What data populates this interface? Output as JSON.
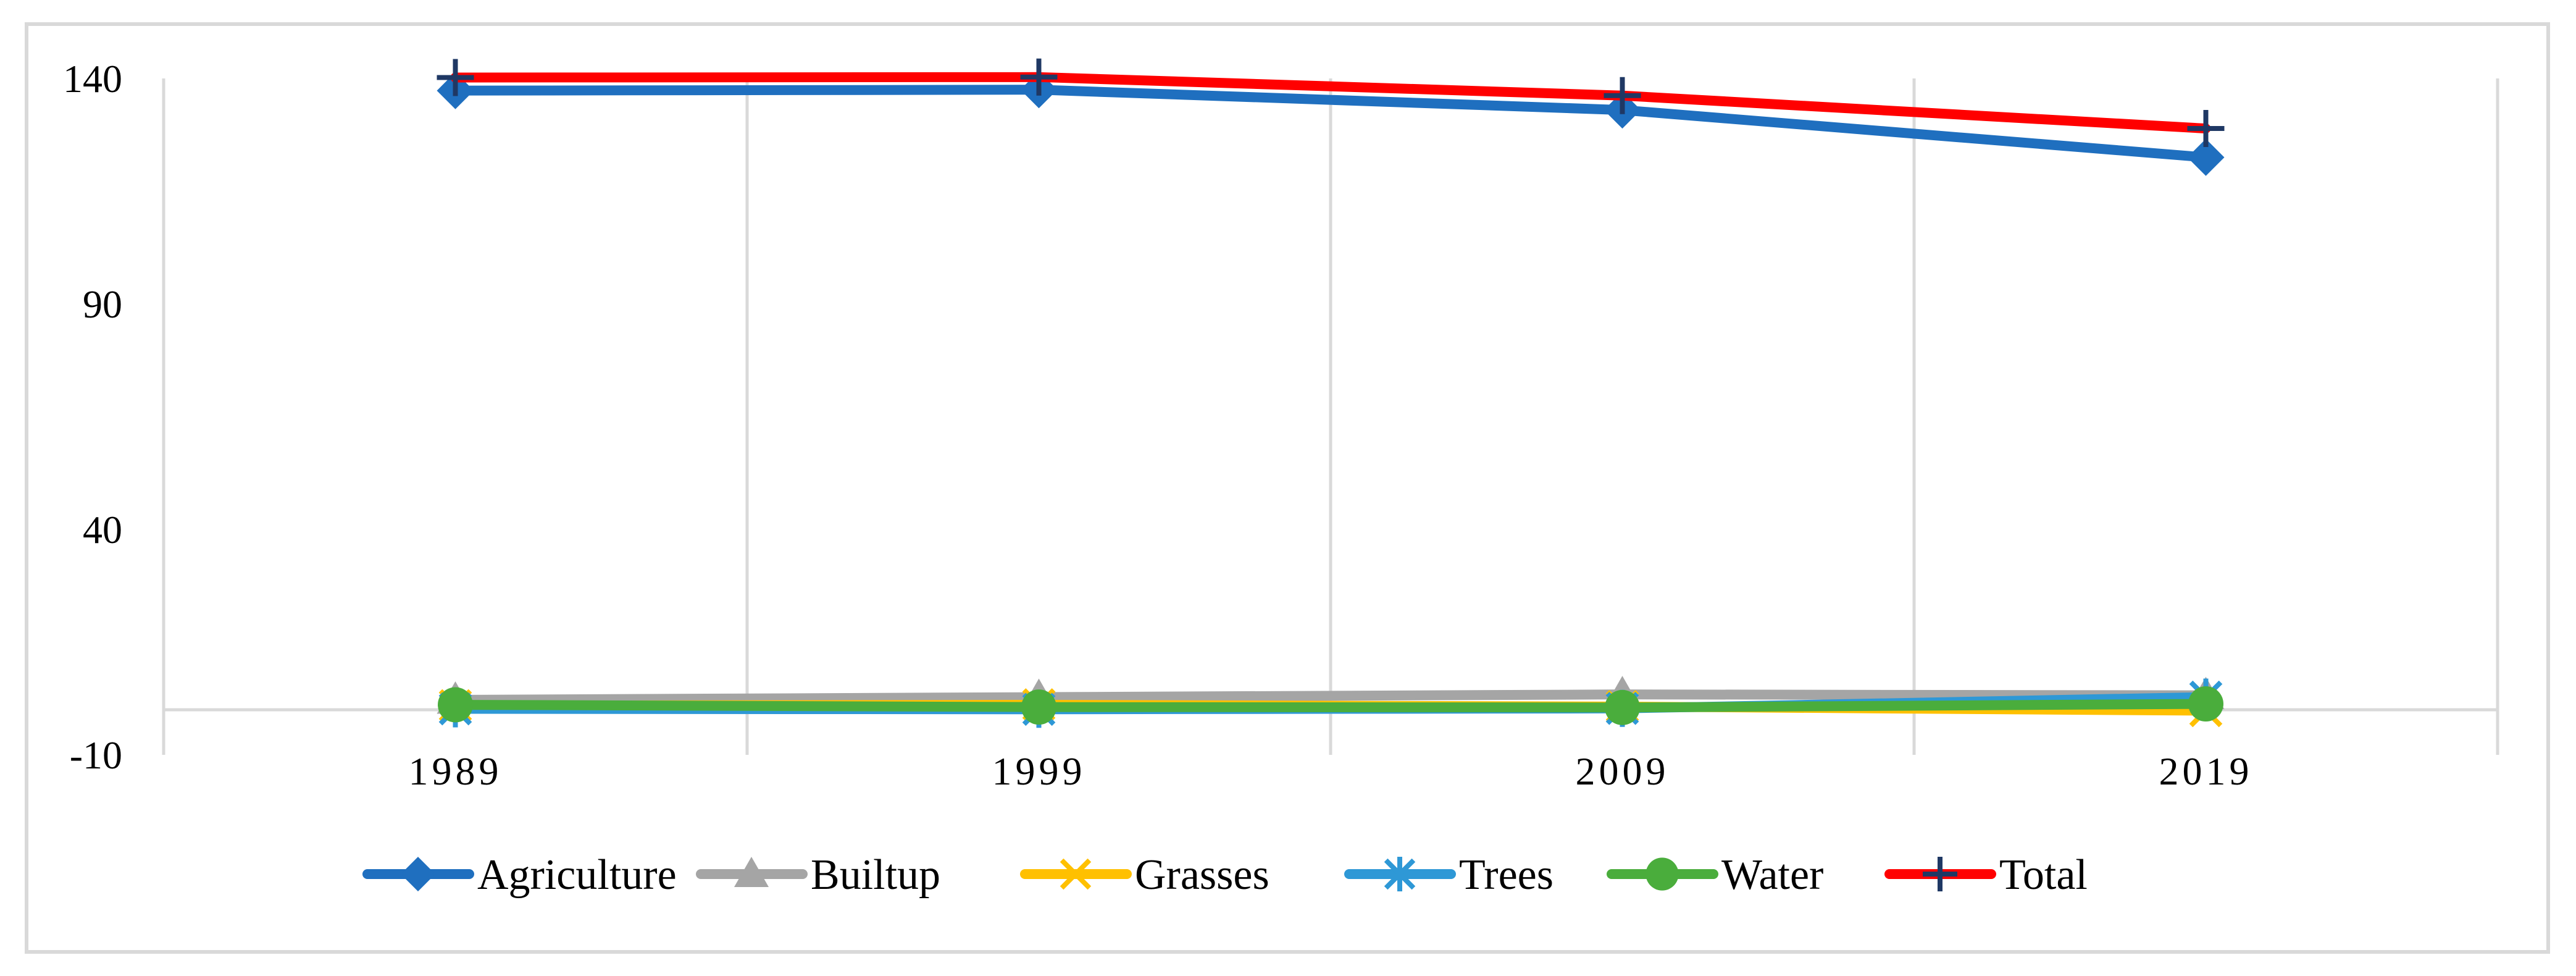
{
  "chart_data": {
    "type": "line",
    "x": [
      "1989",
      "1999",
      "2009",
      "2019"
    ],
    "ylim": [
      -10,
      140
    ],
    "yticks": [
      -10,
      40,
      90,
      140
    ],
    "grid": "vertical",
    "legend_position": "bottom",
    "title": "",
    "xlabel": "",
    "ylabel": "",
    "series": [
      {
        "name": "Agriculture",
        "values": [
          137.3,
          137.5,
          133.0,
          122.5
        ],
        "color": "#1f6fbf",
        "marker": "diamond"
      },
      {
        "name": "Builtup",
        "values": [
          2.2,
          2.8,
          3.4,
          3.2
        ],
        "color": "#a5a5a5",
        "marker": "triangle"
      },
      {
        "name": "Grasses",
        "values": [
          0.9,
          1.1,
          0.7,
          -0.2
        ],
        "color": "#ffc000",
        "marker": "x"
      },
      {
        "name": "Trees",
        "values": [
          0.2,
          0.1,
          0.3,
          2.8
        ],
        "color": "#2e98d6",
        "marker": "star"
      },
      {
        "name": "Water",
        "values": [
          1.1,
          0.6,
          0.5,
          1.3
        ],
        "color": "#4aad3c",
        "marker": "circle"
      },
      {
        "name": "Total",
        "values": [
          140.2,
          140.3,
          136.2,
          128.9
        ],
        "color": "#ff0000",
        "marker": "plus",
        "marker_color": "#1f3864"
      }
    ]
  }
}
